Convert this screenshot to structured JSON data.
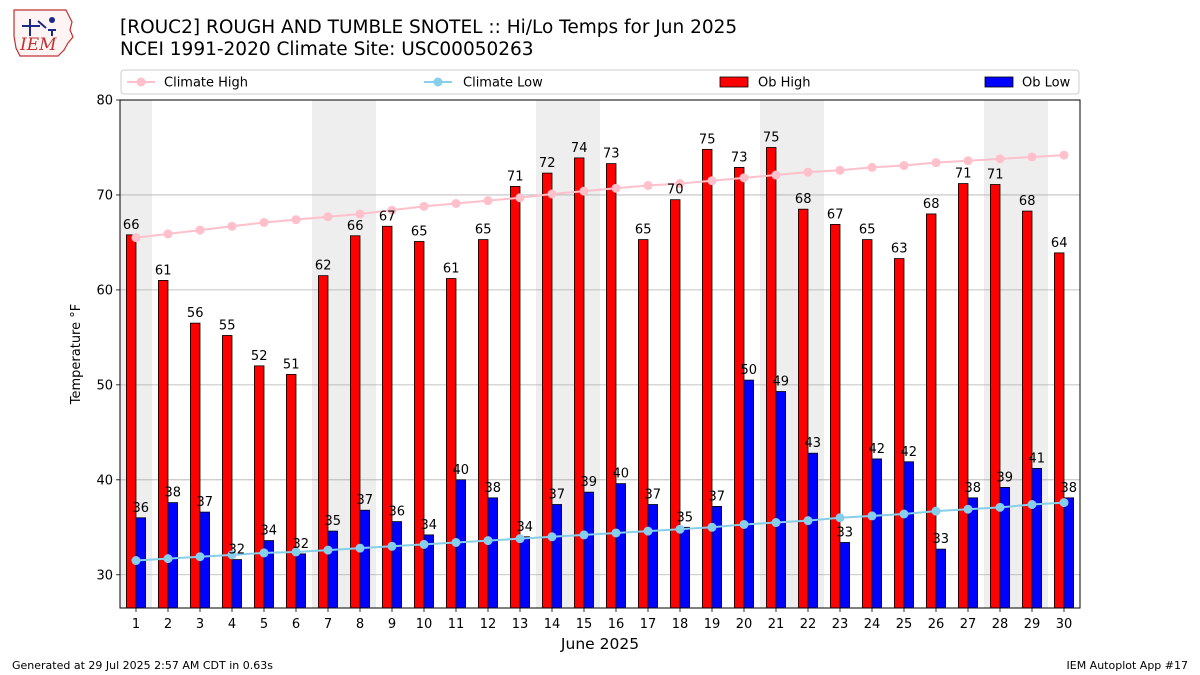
{
  "logo": {
    "text": "IEM",
    "icon": "iowa-state-outline-icon"
  },
  "header": {
    "title_line1": "[ROUC2] ROUGH AND TUMBLE SNOTEL :: Hi/Lo Temps for Jun 2025",
    "title_line2": "NCEI 1991-2020 Climate Site: USC00050263"
  },
  "footer": {
    "left": "Generated at 29 Jul 2025 2:57 AM CDT in 0.63s",
    "right": "IEM Autoplot App #17"
  },
  "colors": {
    "ob_high": "#ff0000",
    "ob_low": "#0000ff",
    "climate_high": "#ffc0cb",
    "climate_low": "#87ceeb",
    "weekend_shade": "#eeeeee",
    "grid": "#b0b0b0"
  },
  "chart_data": {
    "type": "bar",
    "title": "[ROUC2] ROUGH AND TUMBLE SNOTEL :: Hi/Lo Temps for Jun 2025",
    "xlabel": "June 2025",
    "ylabel": "Temperature °F",
    "ylim": [
      26.5,
      80
    ],
    "yticks": [
      30,
      40,
      50,
      60,
      70,
      80
    ],
    "grid": "y",
    "legend_position": "top",
    "categories": [
      "1",
      "2",
      "3",
      "4",
      "5",
      "6",
      "7",
      "8",
      "9",
      "10",
      "11",
      "12",
      "13",
      "14",
      "15",
      "16",
      "17",
      "18",
      "19",
      "20",
      "21",
      "22",
      "23",
      "24",
      "25",
      "26",
      "27",
      "28",
      "29",
      "30"
    ],
    "shaded_days": [
      1,
      7,
      8,
      14,
      15,
      21,
      22,
      28,
      29
    ],
    "series": [
      {
        "name": "Climate High",
        "kind": "line",
        "values": [
          65.5,
          65.9,
          66.3,
          66.7,
          67.1,
          67.4,
          67.7,
          68.0,
          68.4,
          68.8,
          69.1,
          69.4,
          69.7,
          70.1,
          70.4,
          70.7,
          71.0,
          71.2,
          71.5,
          71.8,
          72.1,
          72.4,
          72.6,
          72.9,
          73.1,
          73.4,
          73.6,
          73.8,
          74.0,
          74.2
        ]
      },
      {
        "name": "Climate Low",
        "kind": "line",
        "values": [
          31.5,
          31.7,
          31.9,
          32.1,
          32.3,
          32.4,
          32.6,
          32.8,
          33.0,
          33.2,
          33.4,
          33.6,
          33.8,
          34.0,
          34.2,
          34.4,
          34.6,
          34.8,
          35.0,
          35.3,
          35.5,
          35.7,
          36.0,
          36.2,
          36.4,
          36.7,
          36.9,
          37.1,
          37.4,
          37.6
        ]
      },
      {
        "name": "Ob High",
        "kind": "bar",
        "values": [
          65.8,
          61.0,
          56.5,
          55.2,
          52.0,
          51.1,
          61.5,
          65.7,
          66.7,
          65.1,
          61.2,
          65.3,
          70.9,
          72.3,
          73.9,
          73.3,
          65.3,
          69.5,
          74.8,
          72.9,
          75.0,
          68.5,
          66.9,
          65.3,
          63.3,
          68.0,
          71.2,
          71.1,
          68.3,
          63.9
        ],
        "labels": [
          "66",
          "61",
          "56",
          "55",
          "52",
          "51",
          "62",
          "66",
          "67",
          "65",
          "61",
          "65",
          "71",
          "72",
          "74",
          "73",
          "65",
          "70",
          "75",
          "73",
          "75",
          "68",
          "67",
          "65",
          "63",
          "68",
          "71",
          "71",
          "68",
          "64"
        ]
      },
      {
        "name": "Ob Low",
        "kind": "bar",
        "values": [
          36.0,
          37.6,
          36.6,
          31.6,
          33.6,
          32.2,
          34.6,
          36.8,
          35.6,
          34.2,
          40.0,
          38.1,
          34.0,
          37.4,
          38.7,
          39.6,
          37.4,
          35.0,
          37.2,
          50.5,
          49.3,
          42.8,
          33.4,
          42.2,
          41.9,
          32.7,
          38.1,
          39.2,
          41.2,
          38.1
        ],
        "labels": [
          "36",
          "38",
          "37",
          "32",
          "34",
          "32",
          "35",
          "37",
          "36",
          "34",
          "40",
          "38",
          "34",
          "37",
          "39",
          "40",
          "37",
          "35",
          "37",
          "50",
          "49",
          "43",
          "33",
          "42",
          "42",
          "33",
          "38",
          "39",
          "41",
          "38"
        ]
      }
    ]
  }
}
